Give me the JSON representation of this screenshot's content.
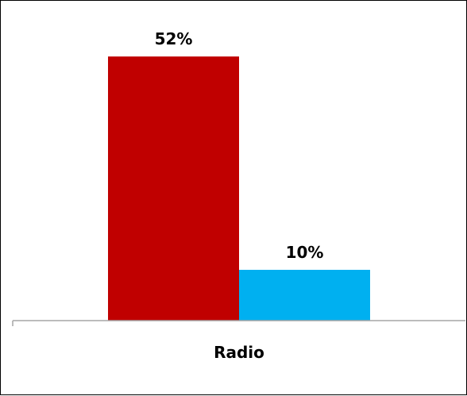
{
  "chart_data": {
    "type": "bar",
    "categories": [
      "Radio"
    ],
    "series": [
      {
        "values": [
          52
        ],
        "color": "#c00000",
        "value_labels": [
          "52%"
        ]
      },
      {
        "values": [
          10
        ],
        "color": "#00b0f0",
        "value_labels": [
          "10%"
        ]
      }
    ],
    "unit": "%",
    "ylim": [
      0,
      60
    ],
    "grid": false,
    "legend": "none"
  }
}
